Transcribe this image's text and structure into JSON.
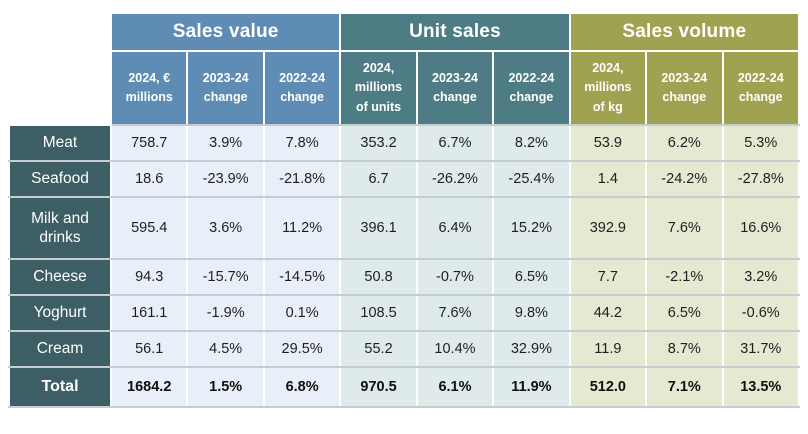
{
  "colors": {
    "sales_value_header": "#5e8cb4",
    "sales_value_cell": "#e9eff8",
    "unit_sales_header": "#4d7c84",
    "unit_sales_cell": "#dfeaea",
    "sales_volume_header": "#9fa351",
    "sales_volume_cell": "#e6e8d2",
    "row_header": "#3c5e64",
    "grid_line": "#c7ccd0",
    "header_text": "#ffffff",
    "cell_text": "#1f1f1f"
  },
  "chart_data": {
    "type": "table",
    "column_groups": [
      {
        "title": "Sales value",
        "columns": [
          "2024, €\nmillions",
          "2023-24\nchange",
          "2022-24\nchange"
        ]
      },
      {
        "title": "Unit sales",
        "columns": [
          "2024,\nmillions\nof units",
          "2023-24\nchange",
          "2022-24\nchange"
        ]
      },
      {
        "title": "Sales volume",
        "columns": [
          "2024,\nmillions\nof kg",
          "2023-24\nchange",
          "2022-24\nchange"
        ]
      }
    ],
    "rows": [
      {
        "label": "Meat",
        "values": [
          "758.7",
          "3.9%",
          "7.8%",
          "353.2",
          "6.7%",
          "8.2%",
          "53.9",
          "6.2%",
          "5.3%"
        ]
      },
      {
        "label": "Seafood",
        "values": [
          "18.6",
          "-23.9%",
          "-21.8%",
          "6.7",
          "-26.2%",
          "-25.4%",
          "1.4",
          "-24.2%",
          "-27.8%"
        ]
      },
      {
        "label": "Milk and drinks",
        "values": [
          "595.4",
          "3.6%",
          "11.2%",
          "396.1",
          "6.4%",
          "15.2%",
          "392.9",
          "7.6%",
          "16.6%"
        ]
      },
      {
        "label": "Cheese",
        "values": [
          "94.3",
          "-15.7%",
          "-14.5%",
          "50.8",
          "-0.7%",
          "6.5%",
          "7.7",
          "-2.1%",
          "3.2%"
        ]
      },
      {
        "label": "Yoghurt",
        "values": [
          "161.1",
          "-1.9%",
          "0.1%",
          "108.5",
          "7.6%",
          "9.8%",
          "44.2",
          "6.5%",
          "-0.6%"
        ]
      },
      {
        "label": "Cream",
        "values": [
          "56.1",
          "4.5%",
          "29.5%",
          "55.2",
          "10.4%",
          "32.9%",
          "11.9",
          "8.7%",
          "31.7%"
        ]
      },
      {
        "label": "Total",
        "values": [
          "1684.2",
          "1.5%",
          "6.8%",
          "970.5",
          "6.1%",
          "11.9%",
          "512.0",
          "7.1%",
          "13.5%"
        ]
      }
    ]
  }
}
